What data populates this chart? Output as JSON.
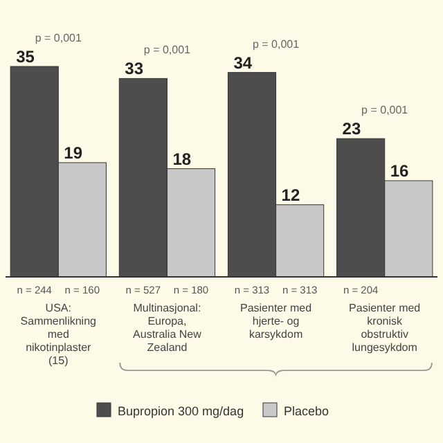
{
  "chart_data": {
    "type": "bar",
    "categories": [
      "USA: Sammenlikning med nikotinplaster (15)",
      "Multinasjonal: Europa, Australia New Zealand",
      "Pasienter med hjerte- og karsykdom",
      "Pasienter med kronisk obstruktiv lungesykdom"
    ],
    "series": [
      {
        "name": "Bupropion 300 mg/dag",
        "color": "#4d4d4d",
        "values": [
          35,
          33,
          34,
          23
        ]
      },
      {
        "name": "Placebo",
        "color": "#c8c8c8",
        "values": [
          19,
          18,
          12,
          16
        ]
      }
    ],
    "data_labels": true,
    "legend": "bottom",
    "annotations": [
      "p = 0,001",
      "p = 0,001",
      "p = 0,001",
      "p = 0,001",
      "n = 244",
      "n = 160",
      "n = 527",
      "n = 180",
      "n = 313",
      "n = 313",
      "n = 204"
    ]
  }
}
